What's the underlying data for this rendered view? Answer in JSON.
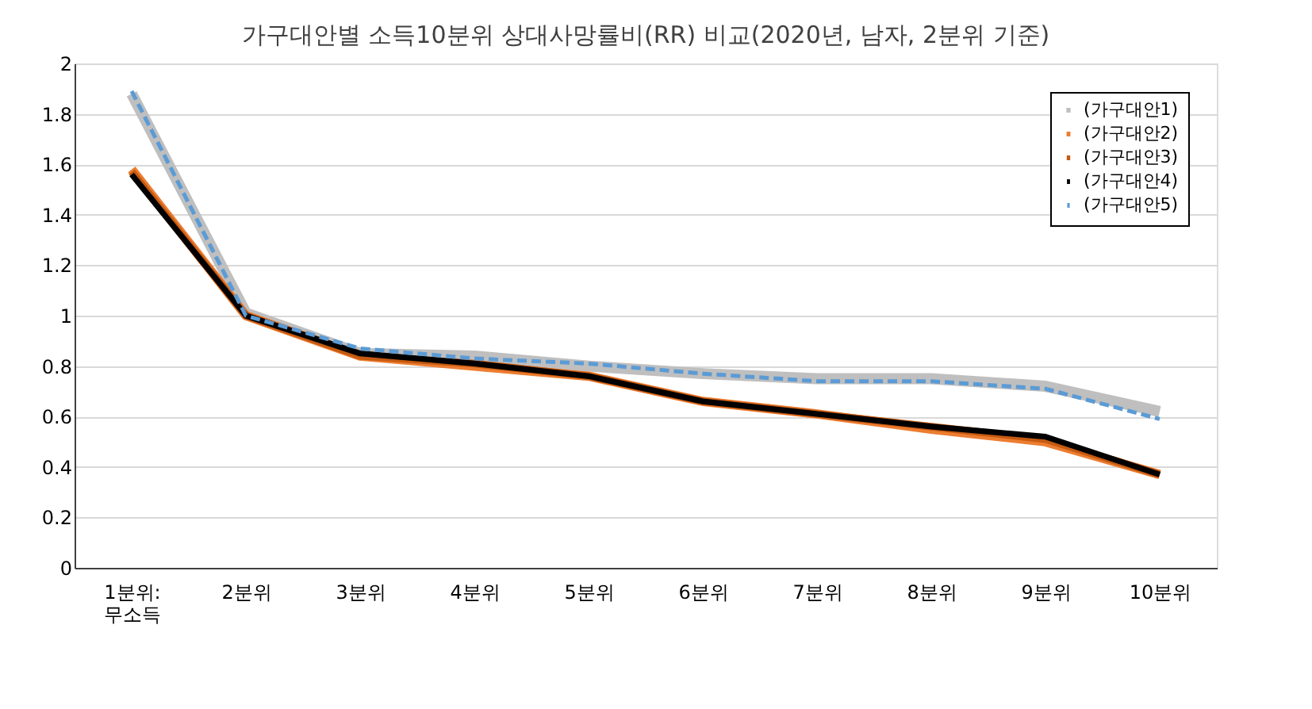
{
  "chart_data": {
    "type": "line",
    "title": "가구대안별 소득10분위 상대사망률비(RR) 비교(2020년, 남자, 2분위  기준)",
    "categories": [
      "1분위:\n무소득",
      "2분위",
      "3분위",
      "4분위",
      "5분위",
      "6분위",
      "7분위",
      "8분위",
      "9분위",
      "10분위"
    ],
    "series": [
      {
        "name": "(가구대안1)",
        "color": "#bfbfbf",
        "line_style": "solid",
        "values": [
          1.88,
          1.01,
          0.85,
          0.84,
          0.8,
          0.77,
          0.75,
          0.75,
          0.72,
          0.62
        ]
      },
      {
        "name": "(가구대안2)",
        "color": "#ed7d31",
        "line_style": "solid",
        "values": [
          1.58,
          1.0,
          0.84,
          0.8,
          0.76,
          0.66,
          0.61,
          0.55,
          0.5,
          0.37
        ]
      },
      {
        "name": "(가구대안3)",
        "color": "#c55a11",
        "line_style": "solid",
        "values": [
          1.57,
          1.0,
          0.84,
          0.81,
          0.76,
          0.66,
          0.61,
          0.56,
          0.51,
          0.37
        ]
      },
      {
        "name": "(가구대안4)",
        "color": "#000000",
        "line_style": "solid",
        "values": [
          1.56,
          1.0,
          0.85,
          0.81,
          0.76,
          0.66,
          0.61,
          0.56,
          0.52,
          0.37
        ]
      },
      {
        "name": "(가구대안5)",
        "color": "#5b9bd5",
        "line_style": "dashed",
        "values": [
          1.89,
          1.0,
          0.87,
          0.83,
          0.81,
          0.77,
          0.74,
          0.74,
          0.71,
          0.59
        ]
      }
    ],
    "ylim": [
      0,
      2
    ],
    "yticks": [
      0,
      0.2,
      0.4,
      0.6,
      0.8,
      1,
      1.2,
      1.4,
      1.6,
      1.8,
      2
    ],
    "grid": "y",
    "legend": "top right",
    "marker": "none"
  }
}
